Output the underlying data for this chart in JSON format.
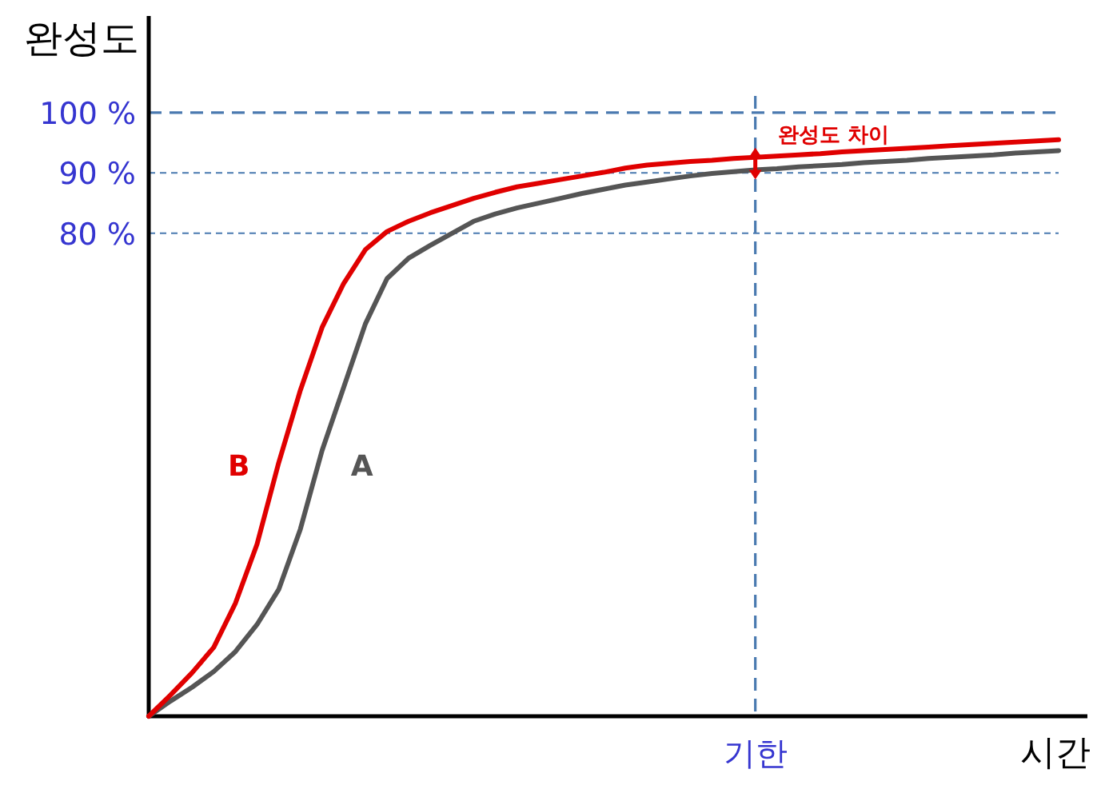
{
  "chart_data": {
    "type": "line",
    "xlabel": "시간",
    "ylabel": "완성도",
    "categories": [
      null,
      null,
      null,
      null,
      null,
      null,
      null,
      null,
      null,
      null,
      null,
      null,
      null,
      null,
      null,
      null,
      null,
      null,
      null,
      null,
      null,
      null,
      null,
      null,
      null,
      null,
      null,
      null,
      "기한",
      null,
      null,
      null,
      null,
      null,
      null,
      null,
      null,
      null,
      null,
      null,
      null,
      null,
      null
    ],
    "ylim": [
      0,
      116
    ],
    "yticks": [
      {
        "value": 80,
        "label": "80 %"
      },
      {
        "value": 90,
        "label": "90 %"
      },
      {
        "value": 100,
        "label": "100 %"
      }
    ],
    "grid": "y",
    "marker": "none",
    "line_style": "solid",
    "series": [
      {
        "name": "A",
        "color": "#555555",
        "values": [
          0,
          2.5,
          4.8,
          7.4,
          10.7,
          15.2,
          21,
          31,
          44,
          54.5,
          65,
          72.5,
          75.9,
          78,
          80,
          82,
          83.2,
          84.2,
          85,
          85.8,
          86.6,
          87.3,
          88,
          88.5,
          89,
          89.5,
          89.9,
          90.2,
          90.5,
          90.7,
          91.0,
          91.2,
          91.4,
          91.7,
          91.9,
          92.1,
          92.4,
          92.6,
          92.8,
          93.0,
          93.3,
          93.5,
          93.7
        ]
      },
      {
        "name": "B",
        "color": "#e00000",
        "values": [
          0,
          3.5,
          7.2,
          11.4,
          18.7,
          28.5,
          42,
          54,
          64.4,
          71.7,
          77.3,
          80.3,
          82,
          83.4,
          84.6,
          85.8,
          86.8,
          87.7,
          88.3,
          88.9,
          89.5,
          90.1,
          90.8,
          91.3,
          91.6,
          91.9,
          92.1,
          92.4,
          92.6,
          92.8,
          93.0,
          93.2,
          93.5,
          93.7,
          93.9,
          94.1,
          94.3,
          94.5,
          94.7,
          94.9,
          95.1,
          95.3,
          95.5
        ]
      }
    ],
    "ref_lines": [
      {
        "axis": "x",
        "value": "기한",
        "color": "#4a7ab0",
        "line_style": "dashed"
      }
    ],
    "annotations": [
      {
        "text": "완성도 차이",
        "x": "기한",
        "y": 92.6
      }
    ]
  }
}
